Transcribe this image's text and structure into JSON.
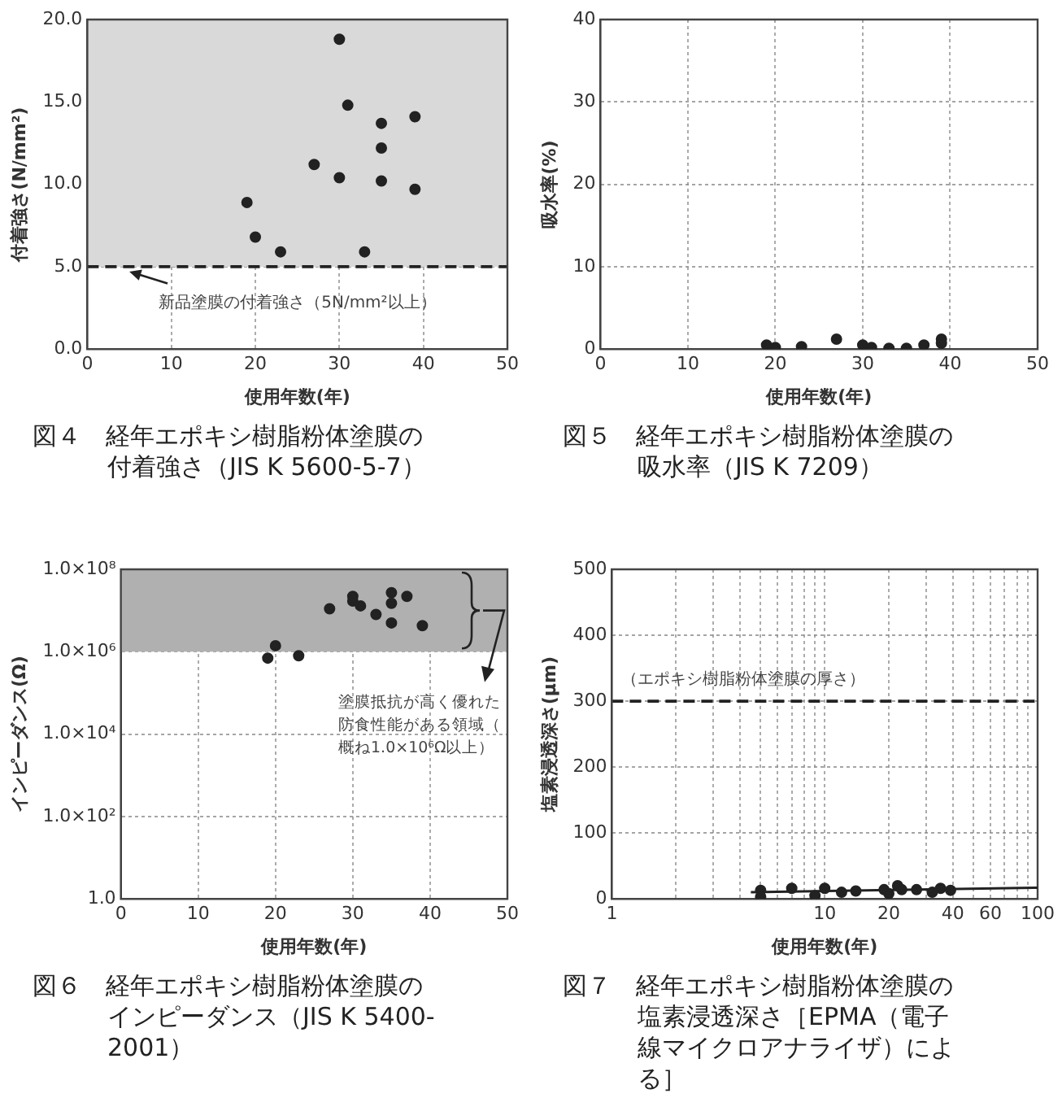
{
  "chart_data": [
    {
      "type": "scatter",
      "title": "図４　経年エポキシ樹脂粉体塗膜の付着強さ（JIS K 5600-5-7）",
      "xlabel": "使用年数(年)",
      "ylabel": "付着強さ(N/mm²)",
      "xlim": [
        0,
        50
      ],
      "xticks": [
        0,
        10,
        20,
        30,
        40,
        50
      ],
      "ylim": [
        0,
        20
      ],
      "yticks": [
        {
          "value": 0,
          "label": "0.0"
        },
        {
          "value": 5,
          "label": "5.0"
        },
        {
          "value": 10,
          "label": "10.0"
        },
        {
          "value": 15,
          "label": "15.0"
        },
        {
          "value": 20,
          "label": "20.0"
        }
      ],
      "grid": true,
      "marker": "circle",
      "series": [
        {
          "color": "#222222",
          "x": [
            19,
            20,
            23,
            27,
            30,
            30,
            31,
            33,
            35,
            35,
            35,
            39,
            39
          ],
          "values": [
            8.9,
            6.8,
            5.9,
            11.2,
            18.8,
            10.4,
            14.8,
            5.9,
            13.7,
            12.2,
            10.2,
            14.1,
            9.7
          ]
        }
      ],
      "bands": [
        {
          "axis": "y",
          "from": 5,
          "to": 20,
          "label": null,
          "color": "#d9d9d9"
        }
      ],
      "ref_lines": [
        {
          "axis": "y",
          "value": 5,
          "label": null,
          "line_style": "dashed",
          "color": "#222222"
        }
      ],
      "annotations": [
        "新品塗膜の付着強さ（5N/mm²以上）"
      ]
    },
    {
      "type": "scatter",
      "title": "図５　経年エポキシ樹脂粉体塗膜の吸水率（JIS K 7209）",
      "xlabel": "使用年数(年)",
      "ylabel": "吸水率(%)",
      "xlim": [
        0,
        50
      ],
      "xticks": [
        0,
        10,
        20,
        30,
        40,
        50
      ],
      "ylim": [
        0,
        40
      ],
      "yticks": [
        0,
        10,
        20,
        30,
        40
      ],
      "grid": true,
      "marker": "circle",
      "series": [
        {
          "color": "#222222",
          "x": [
            19,
            20,
            23,
            27,
            30,
            31,
            33,
            35,
            37,
            39,
            39
          ],
          "values": [
            0.5,
            0.2,
            0.3,
            1.2,
            0.5,
            0.2,
            0.1,
            0.1,
            0.5,
            1.2,
            0.7
          ]
        }
      ]
    },
    {
      "type": "scatter",
      "title": "図６　経年エポキシ樹脂粉体塗膜のインピーダンス（JIS K 5400-2001）",
      "xlabel": "使用年数(年)",
      "ylabel": "インピーダンス(Ω)",
      "log": "y",
      "xlim": [
        0,
        50
      ],
      "xticks": [
        0,
        10,
        20,
        30,
        40,
        50
      ],
      "ylim": [
        1,
        100000000
      ],
      "yticks": [
        {
          "value": 1,
          "label": "1.0"
        },
        {
          "value": 100,
          "label": "1.0×10²"
        },
        {
          "value": 10000,
          "label": "1.0×10⁴"
        },
        {
          "value": 1000000,
          "label": "1.0×10⁶"
        },
        {
          "value": 100000000,
          "label": "1.0×10⁸"
        }
      ],
      "grid": true,
      "marker": "circle",
      "series": [
        {
          "color": "#222222",
          "x": [
            19,
            20,
            23,
            27,
            30,
            30,
            31,
            33,
            35,
            35,
            35,
            37,
            39
          ],
          "values": [
            700000,
            1400000,
            800000,
            11000000,
            22000000,
            17000000,
            13000000,
            8000000,
            27000000,
            15000000,
            5000000,
            22000000,
            4300000
          ]
        }
      ],
      "bands": [
        {
          "axis": "y",
          "from": 1000000,
          "to": 100000000,
          "label": "塗膜抵抗が高く優れた防食性能がある領域（概ね1.0×10⁶Ω以上）",
          "color": "#b0b0b0"
        }
      ]
    },
    {
      "type": "scatter",
      "title": "図７　経年エポキシ樹脂粉体塗膜の塩素浸透深さ［EPMA（電子線マイクロアナライザ）による］",
      "xlabel": "使用年数(年)",
      "ylabel": "塩素浸透深さ(μm)",
      "log": "x",
      "xlim": [
        1,
        100
      ],
      "xticks": [
        1,
        {
          "value": 2,
          "label": null
        },
        {
          "value": 3,
          "label": null
        },
        {
          "value": 4,
          "label": null
        },
        {
          "value": 5,
          "label": null
        },
        {
          "value": 6,
          "label": null
        },
        {
          "value": 7,
          "label": null
        },
        {
          "value": 8,
          "label": null
        },
        {
          "value": 9,
          "label": null
        },
        10,
        20,
        {
          "value": 30,
          "label": null
        },
        40,
        {
          "value": 50,
          "label": null
        },
        60,
        {
          "value": 70,
          "label": null
        },
        {
          "value": 80,
          "label": null
        },
        {
          "value": 90,
          "label": null
        },
        100
      ],
      "ylim": [
        0,
        500
      ],
      "yticks": [
        0,
        100,
        200,
        300,
        400,
        500
      ],
      "grid": true,
      "marker": "circle",
      "series": [
        {
          "color": "#222222",
          "x": [
            5,
            5,
            7,
            9,
            10,
            12,
            14,
            19,
            20,
            22,
            23,
            27,
            32,
            35,
            39
          ],
          "values": [
            13,
            3,
            16,
            5,
            16,
            10,
            12,
            14,
            8,
            20,
            14,
            14,
            10,
            16,
            13
          ]
        },
        {
          "type": "line",
          "color": "#222222",
          "marker": "none",
          "x": [
            4.5,
            100
          ],
          "values": [
            10,
            17
          ]
        }
      ],
      "ref_lines": [
        {
          "axis": "y",
          "value": 300,
          "label": "（エポキシ樹脂粉体塗膜の厚さ）",
          "line_style": "dashed",
          "color": "#222222"
        }
      ]
    }
  ]
}
